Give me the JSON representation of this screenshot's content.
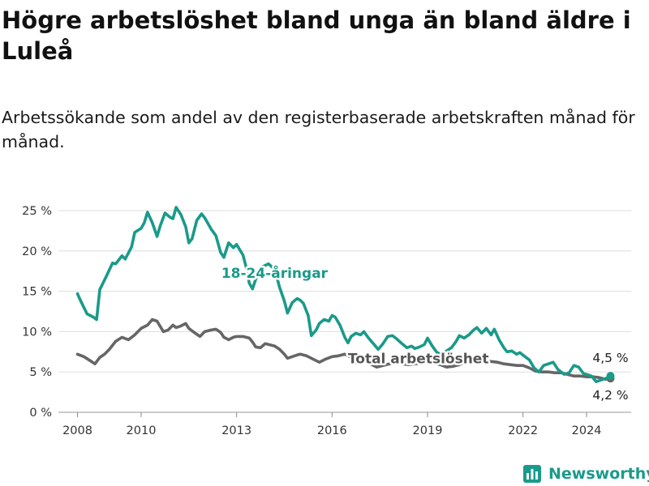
{
  "title": "Högre arbetslöshet bland unga än bland äldre i Luleå",
  "subtitle": "Arbetssökande som andel av den registerbaserade arbetskraften månad för månad.",
  "brand": "Newsworthy",
  "colors": {
    "youth": "#1a9a8a",
    "total": "#666666",
    "brand": "#1a9a8a"
  },
  "chart_data": {
    "type": "line",
    "title": "Högre arbetslöshet bland unga än bland äldre i Luleå",
    "subtitle": "Arbetssökande som andel av den registerbaserade arbetskraften månad för månad.",
    "ylim": [
      0,
      25
    ],
    "xlim": [
      2007.4,
      2025.4
    ],
    "y_ticks": [
      0,
      5,
      10,
      15,
      20,
      25
    ],
    "y_tick_labels": [
      "0 %",
      "5 %",
      "10 %",
      "15 %",
      "20 %",
      "25 %"
    ],
    "x_ticks": [
      2008,
      2010,
      2013,
      2016,
      2019,
      2022,
      2024
    ],
    "x_tick_labels": [
      "2008",
      "2010",
      "2013",
      "2016",
      "2019",
      "2022",
      "2024"
    ],
    "grid": true,
    "legend": "inline labels",
    "series": [
      {
        "name": "18-24-åringar",
        "color": "#1a9a8a",
        "end_label": "4,5 %",
        "x": [
          2008.0,
          2008.1,
          2008.3,
          2008.5,
          2008.6,
          2008.7,
          2008.9,
          2009.1,
          2009.2,
          2009.4,
          2009.5,
          2009.7,
          2009.8,
          2010.0,
          2010.1,
          2010.2,
          2010.35,
          2010.5,
          2010.6,
          2010.75,
          2010.9,
          2011.0,
          2011.1,
          2011.25,
          2011.4,
          2011.5,
          2011.6,
          2011.75,
          2011.9,
          2012.0,
          2012.2,
          2012.35,
          2012.5,
          2012.6,
          2012.75,
          2012.9,
          2013.0,
          2013.2,
          2013.3,
          2013.4,
          2013.5,
          2013.6,
          2013.75,
          2013.9,
          2014.0,
          2014.2,
          2014.35,
          2014.5,
          2014.6,
          2014.75,
          2014.9,
          2015.0,
          2015.1,
          2015.25,
          2015.35,
          2015.5,
          2015.6,
          2015.75,
          2015.9,
          2016.0,
          2016.1,
          2016.25,
          2016.4,
          2016.5,
          2016.6,
          2016.75,
          2016.9,
          2017.0,
          2017.15,
          2017.3,
          2017.45,
          2017.6,
          2017.75,
          2017.9,
          2018.0,
          2018.2,
          2018.35,
          2018.5,
          2018.6,
          2018.75,
          2018.9,
          2019.0,
          2019.15,
          2019.3,
          2019.45,
          2019.6,
          2019.75,
          2019.9,
          2020.0,
          2020.15,
          2020.3,
          2020.45,
          2020.55,
          2020.7,
          2020.85,
          2021.0,
          2021.1,
          2021.25,
          2021.4,
          2021.5,
          2021.65,
          2021.8,
          2021.9,
          2022.0,
          2022.2,
          2022.35,
          2022.5,
          2022.65,
          2022.8,
          2022.95,
          2023.1,
          2023.3,
          2023.45,
          2023.6,
          2023.75,
          2023.9,
          2024.0,
          2024.15,
          2024.3,
          2024.45,
          2024.6,
          2024.75
        ],
        "values": [
          14.7,
          13.8,
          12.2,
          11.8,
          11.5,
          15.2,
          16.8,
          18.5,
          18.4,
          19.4,
          19.0,
          20.5,
          22.3,
          22.8,
          23.5,
          24.8,
          23.5,
          21.8,
          23.1,
          24.7,
          24.2,
          24.0,
          25.4,
          24.5,
          23.0,
          21.0,
          21.5,
          23.8,
          24.6,
          24.1,
          22.7,
          21.9,
          19.8,
          19.2,
          21.0,
          20.4,
          20.8,
          19.5,
          18.0,
          16.0,
          15.3,
          16.5,
          17.9,
          18.2,
          18.4,
          17.7,
          15.5,
          13.8,
          12.3,
          13.6,
          14.1,
          13.9,
          13.5,
          12.0,
          9.5,
          10.2,
          11.0,
          11.5,
          11.3,
          12.0,
          11.8,
          10.8,
          9.3,
          8.6,
          9.4,
          9.8,
          9.6,
          10.0,
          9.2,
          8.5,
          7.8,
          8.5,
          9.4,
          9.5,
          9.2,
          8.5,
          8.0,
          8.2,
          7.9,
          8.1,
          8.4,
          9.2,
          8.2,
          7.4,
          7.2,
          7.6,
          8.0,
          8.8,
          9.5,
          9.2,
          9.6,
          10.2,
          10.5,
          9.8,
          10.4,
          9.6,
          10.3,
          9.0,
          8.0,
          7.5,
          7.6,
          7.2,
          7.4,
          7.1,
          6.5,
          5.5,
          5.0,
          5.8,
          6.0,
          6.2,
          5.3,
          4.7,
          4.9,
          5.8,
          5.6,
          4.8,
          4.7,
          4.5,
          3.8,
          4.0,
          4.2,
          4.5
        ]
      },
      {
        "name": "Total arbetslöshet",
        "color": "#666666",
        "end_label": "4,2 %",
        "x": [
          2008.0,
          2008.2,
          2008.4,
          2008.55,
          2008.7,
          2008.85,
          2009.0,
          2009.2,
          2009.4,
          2009.6,
          2009.8,
          2010.0,
          2010.2,
          2010.35,
          2010.5,
          2010.7,
          2010.85,
          2011.0,
          2011.1,
          2011.25,
          2011.4,
          2011.5,
          2011.7,
          2011.85,
          2012.0,
          2012.2,
          2012.35,
          2012.5,
          2012.6,
          2012.75,
          2012.9,
          2013.0,
          2013.2,
          2013.4,
          2013.5,
          2013.6,
          2013.75,
          2013.9,
          2014.0,
          2014.2,
          2014.35,
          2014.5,
          2014.6,
          2014.75,
          2014.9,
          2015.0,
          2015.2,
          2015.4,
          2015.6,
          2015.8,
          2016.0,
          2016.2,
          2016.4,
          2016.55,
          2016.75,
          2016.9,
          2017.0,
          2017.2,
          2017.4,
          2017.6,
          2017.8,
          2018.0,
          2018.2,
          2018.4,
          2018.6,
          2018.8,
          2019.0,
          2019.2,
          2019.4,
          2019.6,
          2019.8,
          2020.0,
          2020.2,
          2020.4,
          2020.6,
          2020.8,
          2021.0,
          2021.2,
          2021.4,
          2021.6,
          2021.8,
          2022.0,
          2022.2,
          2022.4,
          2022.6,
          2022.8,
          2023.0,
          2023.2,
          2023.4,
          2023.6,
          2023.8,
          2024.0,
          2024.2,
          2024.4,
          2024.6,
          2024.75
        ],
        "values": [
          7.2,
          6.9,
          6.4,
          6.0,
          6.8,
          7.2,
          7.8,
          8.8,
          9.3,
          9.0,
          9.6,
          10.4,
          10.8,
          11.5,
          11.3,
          10.0,
          10.2,
          10.8,
          10.5,
          10.7,
          11.0,
          10.4,
          9.8,
          9.4,
          10.0,
          10.2,
          10.3,
          9.9,
          9.3,
          9.0,
          9.3,
          9.4,
          9.4,
          9.2,
          8.7,
          8.1,
          8.0,
          8.5,
          8.4,
          8.2,
          7.8,
          7.2,
          6.7,
          6.9,
          7.1,
          7.2,
          7.0,
          6.6,
          6.2,
          6.6,
          6.9,
          7.0,
          7.2,
          6.9,
          6.1,
          6.3,
          6.5,
          6.0,
          5.6,
          5.8,
          6.0,
          6.2,
          6.0,
          5.9,
          6.0,
          6.1,
          6.2,
          6.1,
          5.9,
          5.6,
          5.7,
          5.9,
          6.2,
          6.5,
          6.6,
          6.4,
          6.3,
          6.2,
          6.0,
          5.9,
          5.8,
          5.8,
          5.5,
          5.1,
          5.0,
          5.0,
          4.9,
          4.9,
          4.7,
          4.5,
          4.5,
          4.4,
          4.4,
          4.3,
          4.1,
          4.2
        ]
      }
    ],
    "annotations": [
      "18-24-åringar",
      "Total arbetslöshet",
      "4,5 %",
      "4,2 %"
    ]
  }
}
